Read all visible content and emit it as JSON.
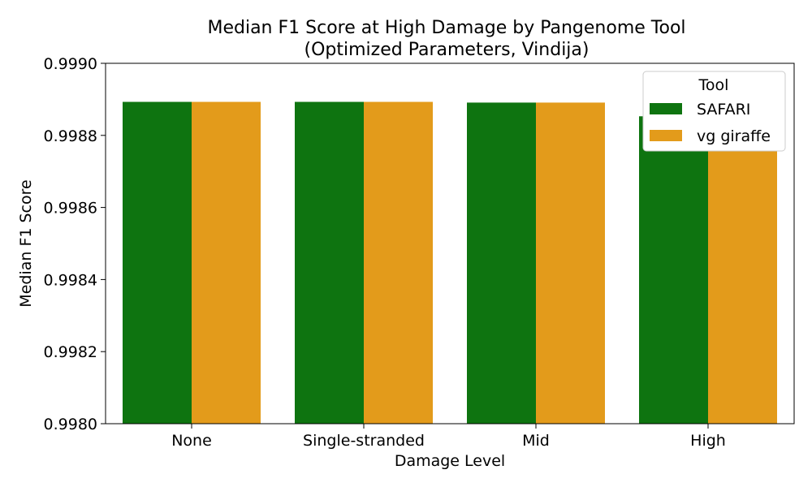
{
  "chart_data": {
    "type": "bar",
    "title_line1": "Median F1 Score at High Damage by Pangenome Tool",
    "title_line2": "(Optimized Parameters, Vindija)",
    "xlabel": "Damage Level",
    "ylabel": "Median F1 Score",
    "categories": [
      "None",
      "Single-stranded",
      "Mid",
      "High"
    ],
    "series": [
      {
        "name": "SAFARI",
        "color": "#0e7410",
        "values": [
          0.998893,
          0.998893,
          0.998891,
          0.998853
        ]
      },
      {
        "name": "vg giraffe",
        "color": "#e39b1b",
        "values": [
          0.998893,
          0.998893,
          0.998891,
          0.998841
        ]
      }
    ],
    "ylim": [
      0.998,
      0.999
    ],
    "yticks": [
      0.998,
      0.9982,
      0.9984,
      0.9986,
      0.9988,
      0.999
    ],
    "ytick_labels": [
      "0.9980",
      "0.9982",
      "0.9984",
      "0.9986",
      "0.9988",
      "0.9990"
    ],
    "legend": {
      "title": "Tool",
      "placement": "top-right"
    },
    "grid": false
  }
}
